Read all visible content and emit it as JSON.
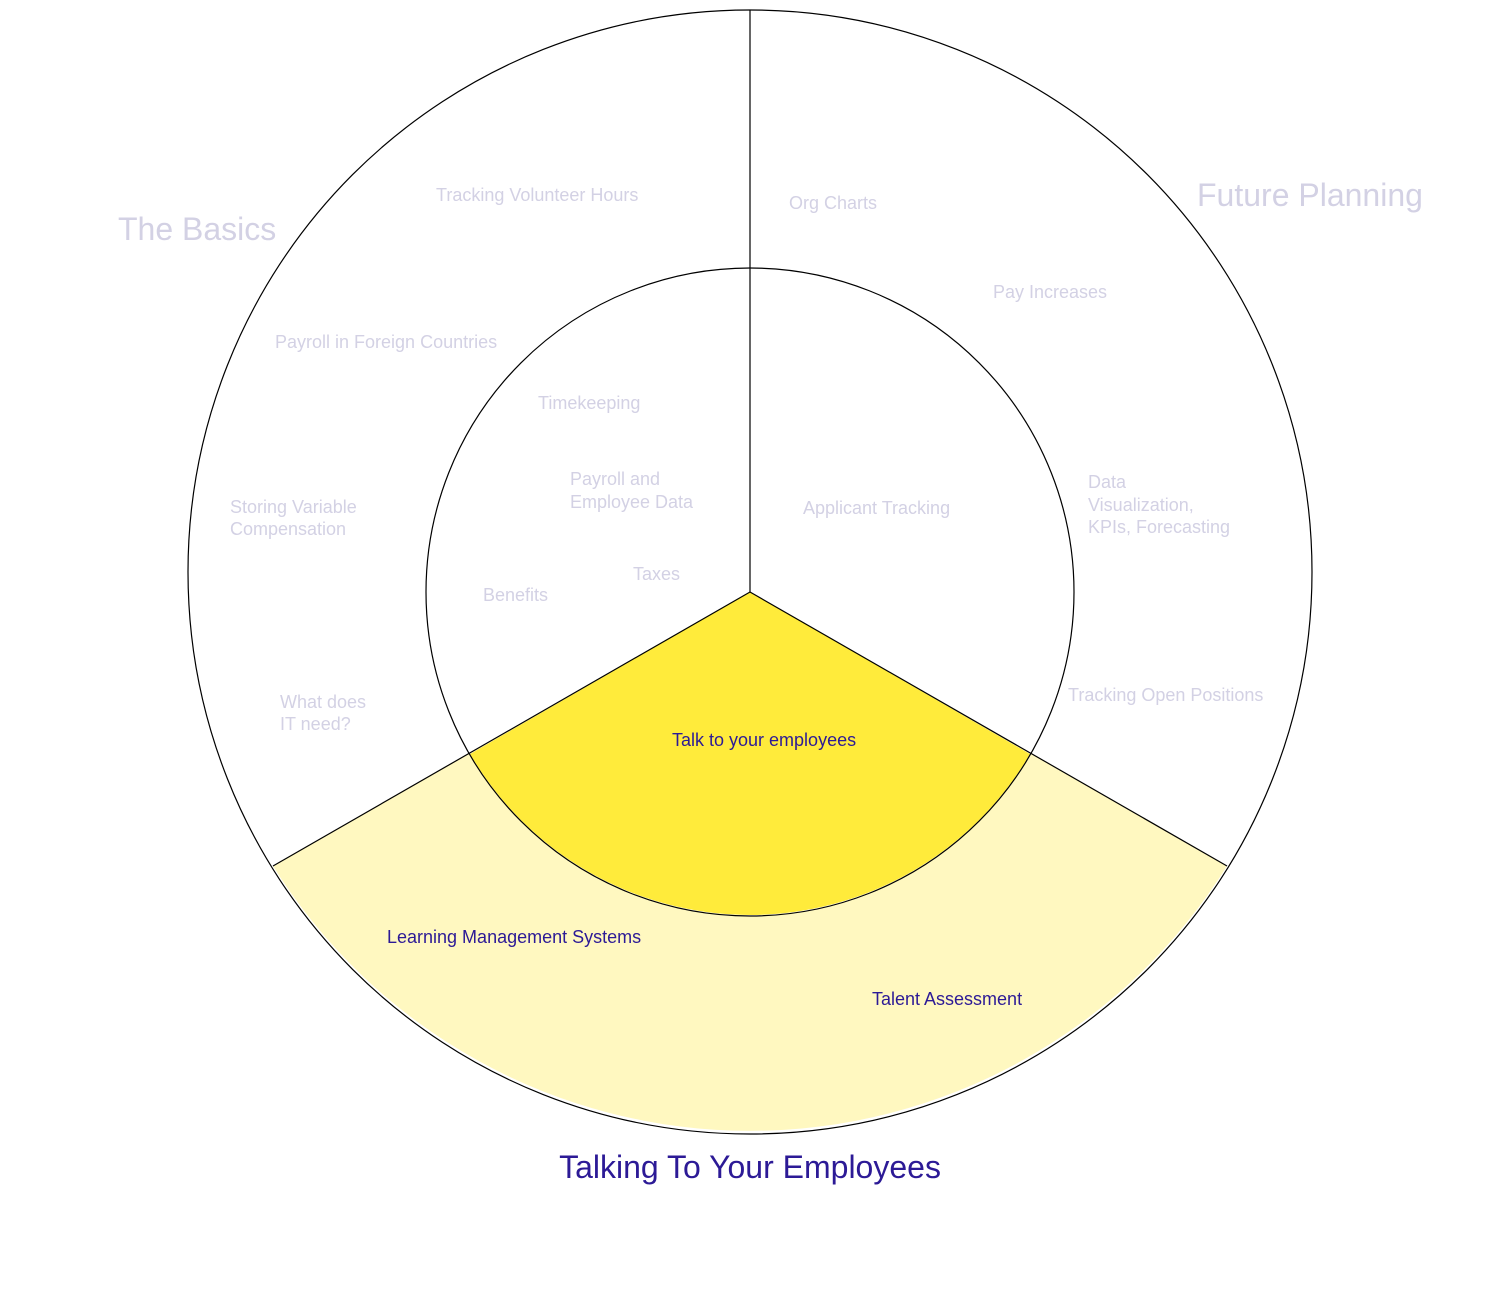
{
  "colors": {
    "highlight_inner": "#ffeb3b",
    "highlight_outer": "#fff8c0",
    "muted_text": "#d3d1e4",
    "active_text": "#2c1a96",
    "stroke": "#000000"
  },
  "sections": {
    "basics": {
      "title": "The Basics",
      "inner": {
        "timekeeping": "Timekeeping",
        "payroll_line1": "Payroll and",
        "payroll_line2": "Employee Data",
        "taxes": "Taxes",
        "benefits": "Benefits"
      },
      "outer": {
        "volunteer": "Tracking Volunteer Hours",
        "foreign_payroll": "Payroll in Foreign Countries",
        "variable_line1": "Storing Variable",
        "variable_line2": "Compensation",
        "it_line1": "What does",
        "it_line2": "IT need?"
      }
    },
    "future": {
      "title": "Future Planning",
      "inner": {
        "applicant": "Applicant Tracking"
      },
      "outer": {
        "org_charts": "Org Charts",
        "pay_increases": "Pay Increases",
        "data_line1": "Data",
        "data_line2": "Visualization,",
        "data_line3": "KPIs, Forecasting",
        "open_positions": "Tracking Open Positions"
      }
    },
    "talking": {
      "title": "Talking To Your Employees",
      "selected": true,
      "inner": {
        "talk": "Talk to your employees"
      },
      "outer": {
        "lms": "Learning Management Systems",
        "talent": "Talent Assessment"
      }
    }
  }
}
